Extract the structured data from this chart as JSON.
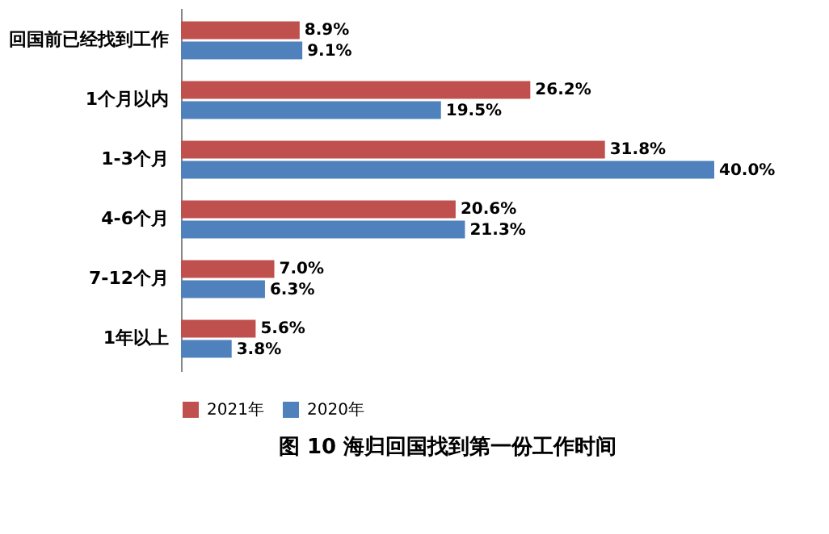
{
  "chart_data": {
    "type": "bar",
    "orientation": "horizontal",
    "title": "图 10   海归回国找到第一份工作时间",
    "categories": [
      "回国前已经找到工作",
      "1个月以内",
      "1-3个月",
      "4-6个月",
      "7-12个月",
      "1年以上"
    ],
    "series": [
      {
        "name": "2021年",
        "color": "#c0504d",
        "values": [
          8.9,
          26.2,
          31.8,
          20.6,
          7.0,
          5.6
        ],
        "value_labels": [
          "8.9%",
          "26.2%",
          "31.8%",
          "20.6%",
          "7.0%",
          "5.6%"
        ]
      },
      {
        "name": "2020年",
        "color": "#4f81bd",
        "values": [
          9.1,
          19.5,
          40.0,
          21.3,
          6.3,
          3.8
        ],
        "value_labels": [
          "9.1%",
          "19.5%",
          "40.0%",
          "21.3%",
          "6.3%",
          "3.8%"
        ]
      }
    ],
    "legend": "bottom"
  }
}
